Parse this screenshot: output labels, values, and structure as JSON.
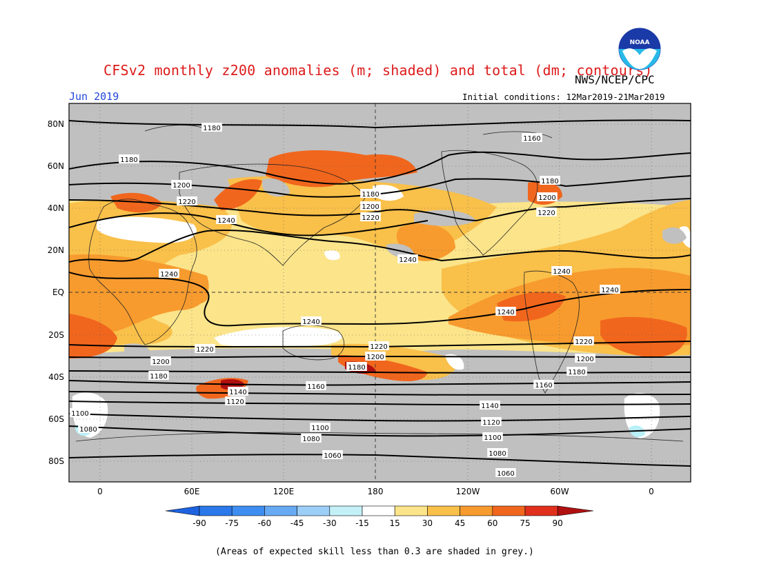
{
  "header": {
    "title": "CFSv2 monthly z200 anomalies (m; shaded) and total (dm; contours)",
    "agency": "NWS/NCEP/CPC",
    "month": "Jun 2019",
    "initial_conditions": "Initial conditions: 12Mar2019-21Mar2019"
  },
  "logo": {
    "text": "NOAA",
    "icon": "noaa-logo"
  },
  "map": {
    "lat_labels": [
      "80N",
      "60N",
      "40N",
      "20N",
      "EQ",
      "20S",
      "40S",
      "60S",
      "80S"
    ],
    "lon_labels": [
      "0",
      "60E",
      "120E",
      "180",
      "120W",
      "60W",
      "0"
    ],
    "contour_labels": [
      "1180",
      "1180",
      "1160",
      "1200",
      "1220",
      "1240",
      "1180",
      "1200",
      "1220",
      "1180",
      "1200",
      "1220",
      "1240",
      "1240",
      "1240",
      "1240",
      "1240",
      "1240",
      "1220",
      "1220",
      "1220",
      "1200",
      "1200",
      "1200",
      "1180",
      "1180",
      "1180",
      "1160",
      "1160",
      "1140",
      "1140",
      "1120",
      "1120",
      "1100",
      "1100",
      "1100",
      "1080",
      "1080",
      "1080",
      "1060",
      "1060"
    ],
    "colors": {
      "grey": "#c0c0c0",
      "white": "#ffffff",
      "pale_yellow": "#fbe48a",
      "yellow_orange": "#f9c04a",
      "orange": "#f79b2e",
      "dark_orange": "#f1661d",
      "red": "#e0301d",
      "dark_red": "#b01010",
      "light_cyan": "#b9f0f8"
    }
  },
  "colorbar": {
    "labels": [
      "-90",
      "-75",
      "-60",
      "-45",
      "-30",
      "-15",
      "15",
      "30",
      "45",
      "60",
      "75",
      "90"
    ],
    "colors": [
      "#1e62e0",
      "#2a78ea",
      "#3d8ef0",
      "#66aaf4",
      "#9ccff8",
      "#c4f1f8",
      "#ffffff",
      "#fbe48a",
      "#f9c04a",
      "#f79b2e",
      "#f1661d",
      "#e0301d",
      "#b01010"
    ]
  },
  "footnote": "(Areas of expected skill less than 0.3 are shaded in grey.)"
}
